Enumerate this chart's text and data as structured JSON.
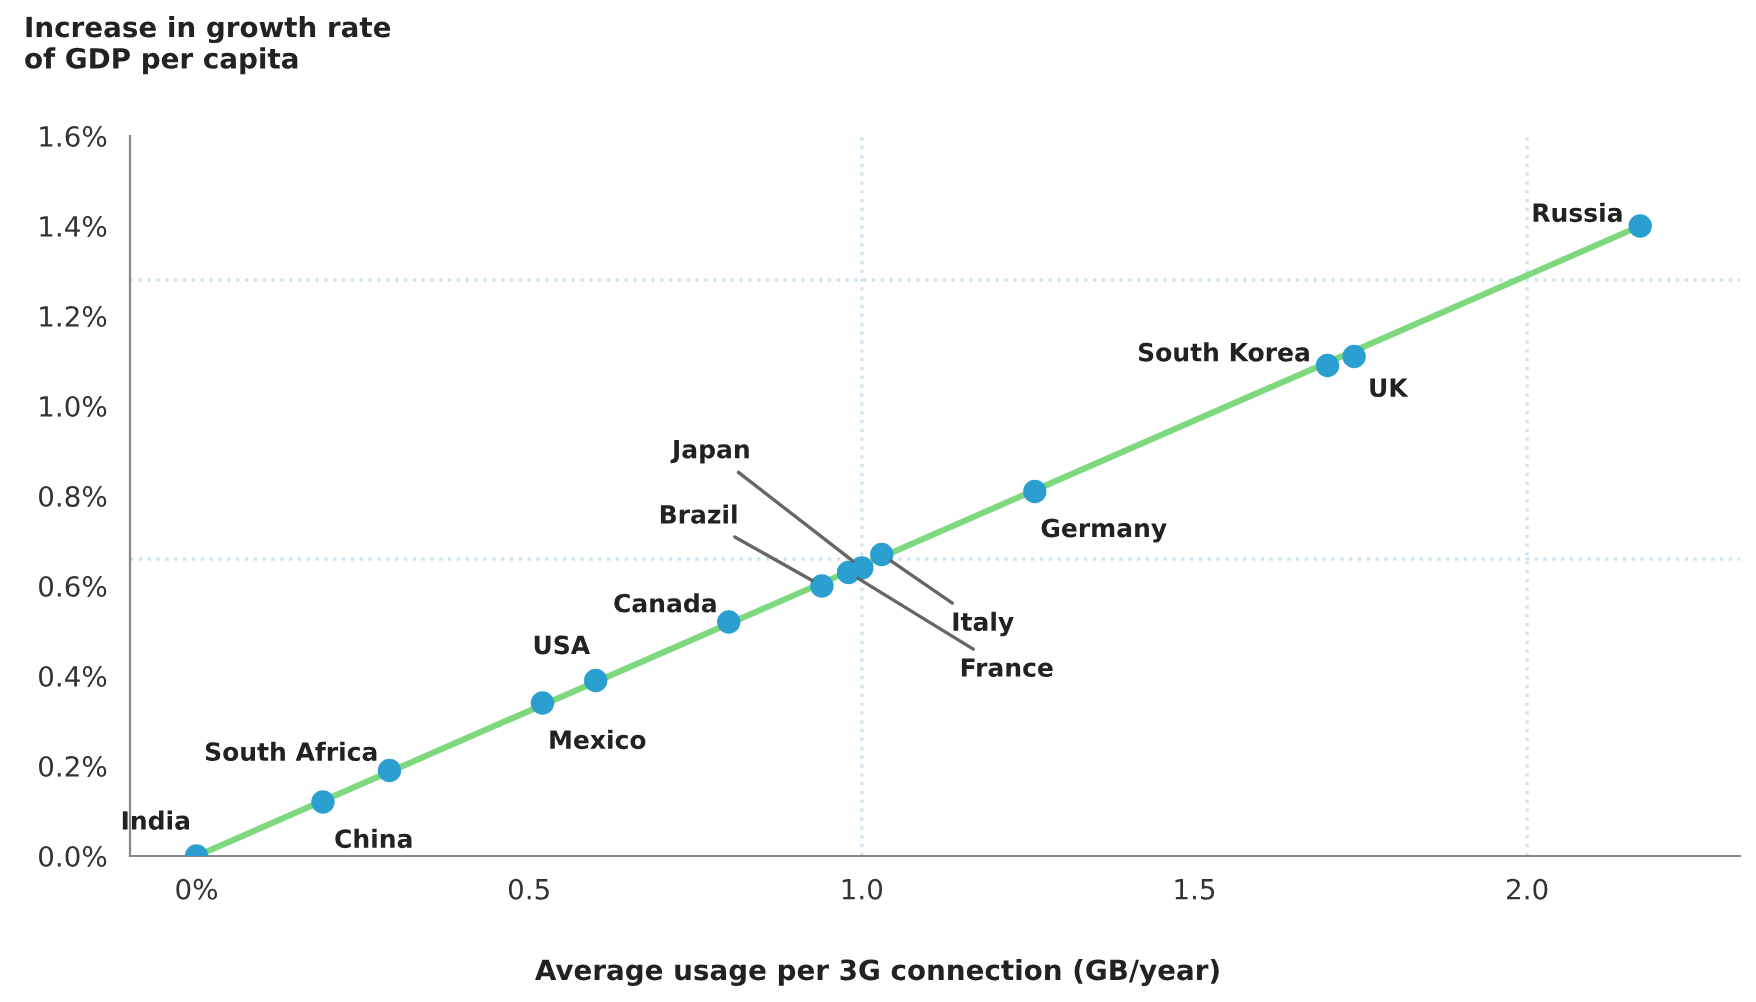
{
  "chart_data": {
    "type": "scatter",
    "ylabel": "Increase in growth rate\nof GDP per capita",
    "xlabel": "Average usage per 3G connection (GB/year)",
    "xlim": [
      -0.1,
      2.32
    ],
    "xticks": [
      {
        "value": 0,
        "label": "0%"
      },
      0.5,
      {
        "value": 1,
        "label": "1.0"
      },
      1.5,
      {
        "value": 2,
        "label": "2.0"
      }
    ],
    "ylim": [
      0,
      1.6
    ],
    "yticks": [
      {
        "value": 0,
        "label": "0.0%"
      },
      {
        "value": 0.2,
        "label": "0.2%"
      },
      {
        "value": 0.4,
        "label": "0.4%"
      },
      {
        "value": 0.6,
        "label": "0.6%"
      },
      {
        "value": 0.8,
        "label": "0.8%"
      },
      {
        "value": 1,
        "label": "1.0%"
      },
      {
        "value": 1.2,
        "label": "1.2%"
      },
      {
        "value": 1.4,
        "label": "1.4%"
      },
      {
        "value": 1.6,
        "label": "1.6%"
      }
    ],
    "grid": false,
    "series": [
      {
        "type": "line",
        "color": "#7ed87e",
        "x": [
          0,
          2.17
        ],
        "values": [
          0,
          1.4
        ]
      },
      {
        "color": "#2a9fd0",
        "marker": "circle",
        "x": [
          0,
          0.19,
          0.29,
          0.52,
          0.6,
          0.8,
          0.94,
          0.98,
          1.0,
          1.03,
          1.26,
          1.7,
          1.74,
          2.17
        ],
        "values": [
          0,
          0.12,
          0.19,
          0.34,
          0.39,
          0.52,
          0.6,
          0.63,
          0.64,
          0.67,
          0.81,
          1.09,
          1.11,
          1.4
        ]
      }
    ],
    "ref_lines": [
      {
        "axis": "y",
        "value": 1.28,
        "color": "#cfe6f2",
        "line_style": "dotted"
      },
      {
        "axis": "x",
        "value": 2.0,
        "color": "#cfe6f2",
        "line_style": "dotted"
      },
      {
        "axis": "y",
        "value": 0.66,
        "color": "#cfe6f2",
        "line_style": "dotted"
      },
      {
        "axis": "x",
        "value": 1.0,
        "color": "#cfe6f2",
        "line_style": "dotted"
      }
    ],
    "annotations": [
      {
        "text": "India",
        "x": 0,
        "y": 0
      },
      {
        "text": "China",
        "x": 0.19,
        "y": 0.12
      },
      {
        "text": "South Africa",
        "x": 0.29,
        "y": 0.19
      },
      {
        "text": "Mexico",
        "x": 0.52,
        "y": 0.34
      },
      {
        "text": "USA",
        "x": 0.6,
        "y": 0.39
      },
      {
        "text": "Canada",
        "x": 0.8,
        "y": 0.52
      },
      {
        "text": "Brazil",
        "x": 0.94,
        "y": 0.6
      },
      {
        "text": "France",
        "x": 0.98,
        "y": 0.63
      },
      {
        "text": "Japan",
        "x": 1.0,
        "y": 0.64
      },
      {
        "text": "Italy",
        "x": 1.03,
        "y": 0.67
      },
      {
        "text": "Germany",
        "x": 1.26,
        "y": 0.81
      },
      {
        "text": "South Korea",
        "x": 1.7,
        "y": 1.09
      },
      {
        "text": "UK",
        "x": 1.74,
        "y": 1.11
      },
      {
        "text": "Russia",
        "x": 2.17,
        "y": 1.4
      }
    ]
  }
}
